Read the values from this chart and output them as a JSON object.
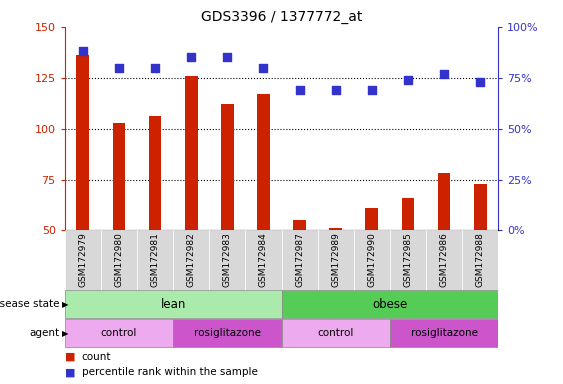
{
  "title": "GDS3396 / 1377772_at",
  "samples": [
    "GSM172979",
    "GSM172980",
    "GSM172981",
    "GSM172982",
    "GSM172983",
    "GSM172984",
    "GSM172987",
    "GSM172989",
    "GSM172990",
    "GSM172985",
    "GSM172986",
    "GSM172988"
  ],
  "counts": [
    136,
    103,
    106,
    126,
    112,
    117,
    55,
    51,
    61,
    66,
    78,
    73
  ],
  "percentile_ranks": [
    88,
    80,
    80,
    85,
    85,
    80,
    69,
    69,
    69,
    74,
    77,
    73
  ],
  "ylim_left": [
    50,
    150
  ],
  "ylim_right": [
    0,
    100
  ],
  "yticks_left": [
    50,
    75,
    100,
    125,
    150
  ],
  "yticks_right": [
    0,
    25,
    50,
    75,
    100
  ],
  "ytick_labels_right": [
    "0%",
    "25%",
    "50%",
    "75%",
    "100%"
  ],
  "bar_color": "#cc2200",
  "dot_color": "#3333cc",
  "left_axis_color": "#cc2200",
  "right_axis_color": "#3333cc",
  "disease_state_groups": [
    {
      "label": "lean",
      "start": 0,
      "end": 6,
      "color": "#aaeaaa"
    },
    {
      "label": "obese",
      "start": 6,
      "end": 12,
      "color": "#55cc55"
    }
  ],
  "agent_groups": [
    {
      "label": "control",
      "start": 0,
      "end": 3,
      "color": "#eeaaee"
    },
    {
      "label": "rosiglitazone",
      "start": 3,
      "end": 6,
      "color": "#cc55cc"
    },
    {
      "label": "control",
      "start": 6,
      "end": 9,
      "color": "#eeaaee"
    },
    {
      "label": "rosiglitazone",
      "start": 9,
      "end": 12,
      "color": "#cc55cc"
    }
  ],
  "hgrid_lines": [
    75,
    100,
    125
  ],
  "bar_width": 0.35,
  "dot_size": 28
}
